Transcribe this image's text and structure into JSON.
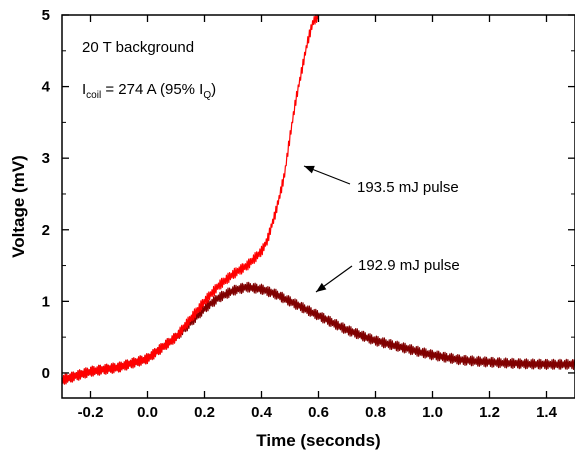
{
  "chart_data": {
    "type": "line",
    "title": "",
    "xlabel": "Time (seconds)",
    "ylabel": "Voltage (mV)",
    "xlim": [
      -0.3,
      1.5
    ],
    "ylim": [
      -0.35,
      5
    ],
    "x_ticks": [
      -0.2,
      0.0,
      0.2,
      0.4,
      0.6,
      0.8,
      1.0,
      1.2,
      1.4
    ],
    "x_tick_labels": [
      "-0.2",
      "0.0",
      "0.2",
      "0.4",
      "0.6",
      "0.8",
      "1.0",
      "1.2",
      "1.4"
    ],
    "y_ticks": [
      0,
      1,
      2,
      3,
      4,
      5
    ],
    "y_tick_labels": [
      "0",
      "1",
      "2",
      "3",
      "4",
      "5"
    ],
    "grid": false,
    "legend": "none",
    "annotations": {
      "background": "20 T background",
      "coil_main": "I",
      "coil_sub": "coil",
      "coil_mid": " = 274 A (95% I",
      "coil_q_sub": "Q",
      "coil_end": ")",
      "arrow_label_1": "193.5 mJ pulse",
      "arrow_label_2": "192.9 mJ pulse"
    },
    "series": [
      {
        "color": "#ff0000",
        "x": [
          -0.3,
          -0.2,
          -0.1,
          0.0,
          0.1,
          0.2,
          0.25,
          0.3,
          0.35,
          0.4,
          0.42,
          0.45,
          0.48,
          0.5,
          0.52,
          0.54,
          0.56,
          0.58,
          0.6
        ],
        "values": [
          -0.1,
          0.02,
          0.08,
          0.2,
          0.5,
          1.0,
          1.22,
          1.38,
          1.5,
          1.7,
          1.85,
          2.25,
          2.75,
          3.3,
          3.8,
          4.2,
          4.6,
          4.9,
          5.0
        ]
      },
      {
        "color": "#800000",
        "x": [
          -0.3,
          -0.2,
          -0.1,
          0.0,
          0.1,
          0.2,
          0.25,
          0.3,
          0.35,
          0.4,
          0.45,
          0.5,
          0.6,
          0.7,
          0.8,
          0.9,
          1.0,
          1.1,
          1.2,
          1.3,
          1.4,
          1.5
        ],
        "values": [
          -0.1,
          0.02,
          0.08,
          0.2,
          0.5,
          0.9,
          1.05,
          1.15,
          1.2,
          1.17,
          1.1,
          1.0,
          0.8,
          0.6,
          0.45,
          0.35,
          0.25,
          0.18,
          0.15,
          0.13,
          0.12,
          0.12
        ]
      }
    ]
  }
}
